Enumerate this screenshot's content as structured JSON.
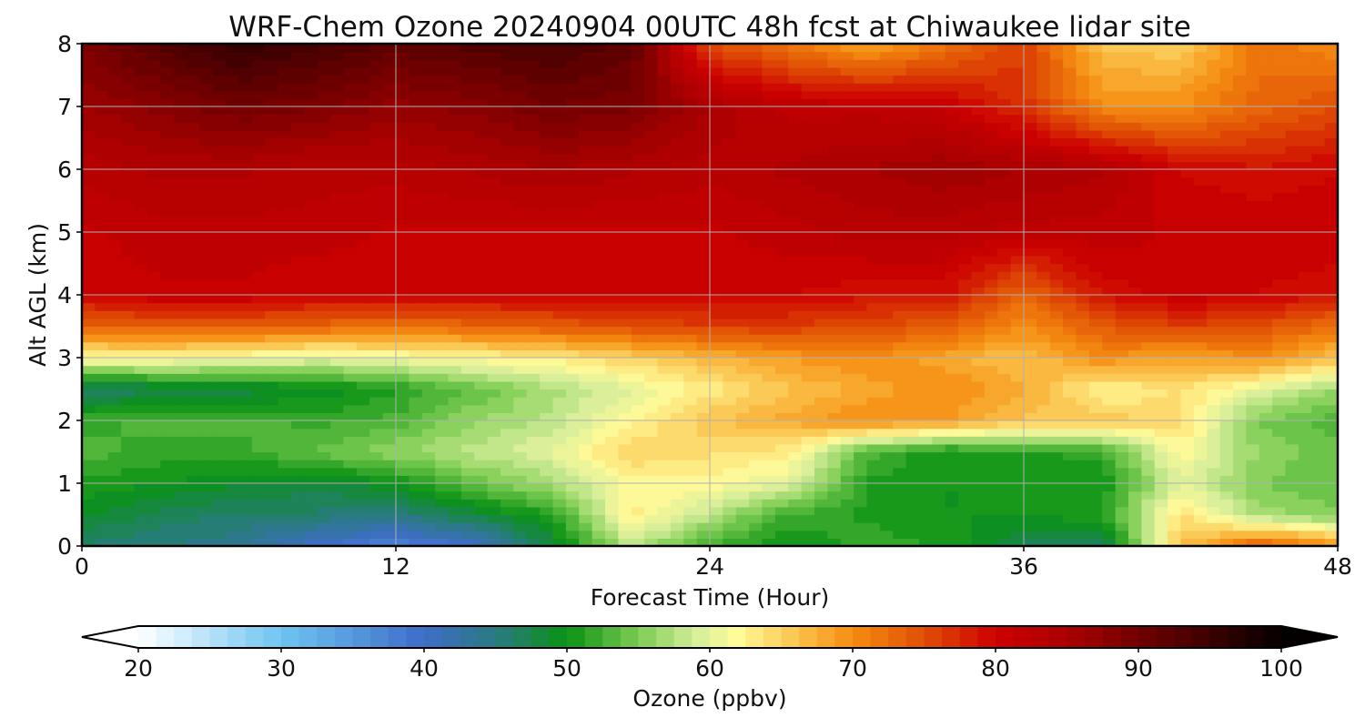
{
  "chart_data": {
    "type": "heatmap",
    "title": "WRF-Chem Ozone  20240904 00UTC 48h fcst at Chiwaukee lidar site",
    "xlabel": "Forecast Time (Hour)",
    "ylabel": "Alt AGL (km)",
    "xlim": [
      0,
      48
    ],
    "ylim": [
      0,
      8
    ],
    "x_ticks": [
      0,
      12,
      24,
      36,
      48
    ],
    "y_ticks": [
      0,
      1,
      2,
      3,
      4,
      5,
      6,
      7,
      8
    ],
    "grid": true,
    "colorbar": {
      "label": "Ozone  (ppbv)",
      "range": [
        20,
        100
      ],
      "ticks": [
        20,
        30,
        40,
        50,
        60,
        70,
        80,
        90,
        100
      ],
      "extend": "both",
      "stops": [
        {
          "v": 20,
          "c": "#ffffff"
        },
        {
          "v": 30,
          "c": "#6ec4f2"
        },
        {
          "v": 40,
          "c": "#3e6dc8"
        },
        {
          "v": 45,
          "c": "#2a7a82"
        },
        {
          "v": 50,
          "c": "#0a9214"
        },
        {
          "v": 55,
          "c": "#7ccc52"
        },
        {
          "v": 59,
          "c": "#d6ee9a"
        },
        {
          "v": 62,
          "c": "#fffa98"
        },
        {
          "v": 66,
          "c": "#fbc44e"
        },
        {
          "v": 70,
          "c": "#f58c10"
        },
        {
          "v": 75,
          "c": "#e04e04"
        },
        {
          "v": 80,
          "c": "#cc0000"
        },
        {
          "v": 85,
          "c": "#aa0000"
        },
        {
          "v": 92,
          "c": "#5c0000"
        },
        {
          "v": 100,
          "c": "#050000"
        }
      ]
    },
    "z_hours": [
      0,
      3,
      6,
      9,
      12,
      15,
      18,
      21,
      24,
      27,
      30,
      33,
      36,
      39,
      42,
      45,
      48
    ],
    "z_alts_km": [
      0,
      0.5,
      1,
      1.5,
      2,
      2.5,
      3,
      3.5,
      4,
      5,
      6,
      7,
      8
    ],
    "z_ppbv": [
      [
        46,
        45,
        44,
        40,
        37,
        40,
        48,
        58,
        52,
        50,
        52,
        51,
        47,
        46,
        66,
        74,
        70
      ],
      [
        49,
        47,
        46,
        46,
        45,
        48,
        51,
        63,
        58,
        52,
        51,
        50,
        50,
        51,
        64,
        57,
        55
      ],
      [
        51,
        50,
        49,
        48,
        50,
        54,
        57,
        62,
        62,
        60,
        51,
        50,
        50,
        50,
        60,
        55,
        54
      ],
      [
        53,
        52,
        52,
        54,
        56,
        58,
        60,
        65,
        64,
        63,
        53,
        50,
        51,
        52,
        62,
        56,
        54
      ],
      [
        52,
        53,
        53,
        52,
        53,
        56,
        58,
        62,
        66,
        68,
        70,
        69,
        66,
        66,
        64,
        55,
        53
      ],
      [
        46,
        47,
        48,
        49,
        51,
        54,
        57,
        60,
        63,
        66,
        68,
        70,
        68,
        62,
        64,
        60,
        56
      ],
      [
        62,
        62,
        61,
        60,
        61,
        62,
        63,
        65,
        67,
        69,
        70,
        68,
        66,
        70,
        68,
        70,
        66
      ],
      [
        73,
        74,
        74,
        73,
        72,
        73,
        74,
        75,
        76,
        76,
        75,
        74,
        70,
        74,
        76,
        75,
        72
      ],
      [
        80,
        81,
        81,
        80,
        80,
        80,
        80,
        80,
        80,
        80,
        79,
        79,
        73,
        79,
        81,
        80,
        79
      ],
      [
        81,
        82,
        82,
        82,
        81,
        81,
        81,
        81,
        81,
        82,
        83,
        83,
        82,
        82,
        81,
        81,
        81
      ],
      [
        83,
        84,
        84,
        83,
        83,
        84,
        85,
        84,
        83,
        84,
        85,
        86,
        85,
        84,
        80,
        79,
        80
      ],
      [
        86,
        88,
        90,
        89,
        87,
        88,
        90,
        89,
        85,
        82,
        82,
        81,
        77,
        70,
        70,
        73,
        75
      ],
      [
        89,
        93,
        96,
        94,
        92,
        93,
        94,
        92,
        75,
        72,
        68,
        72,
        76,
        66,
        65,
        72,
        70
      ]
    ]
  }
}
